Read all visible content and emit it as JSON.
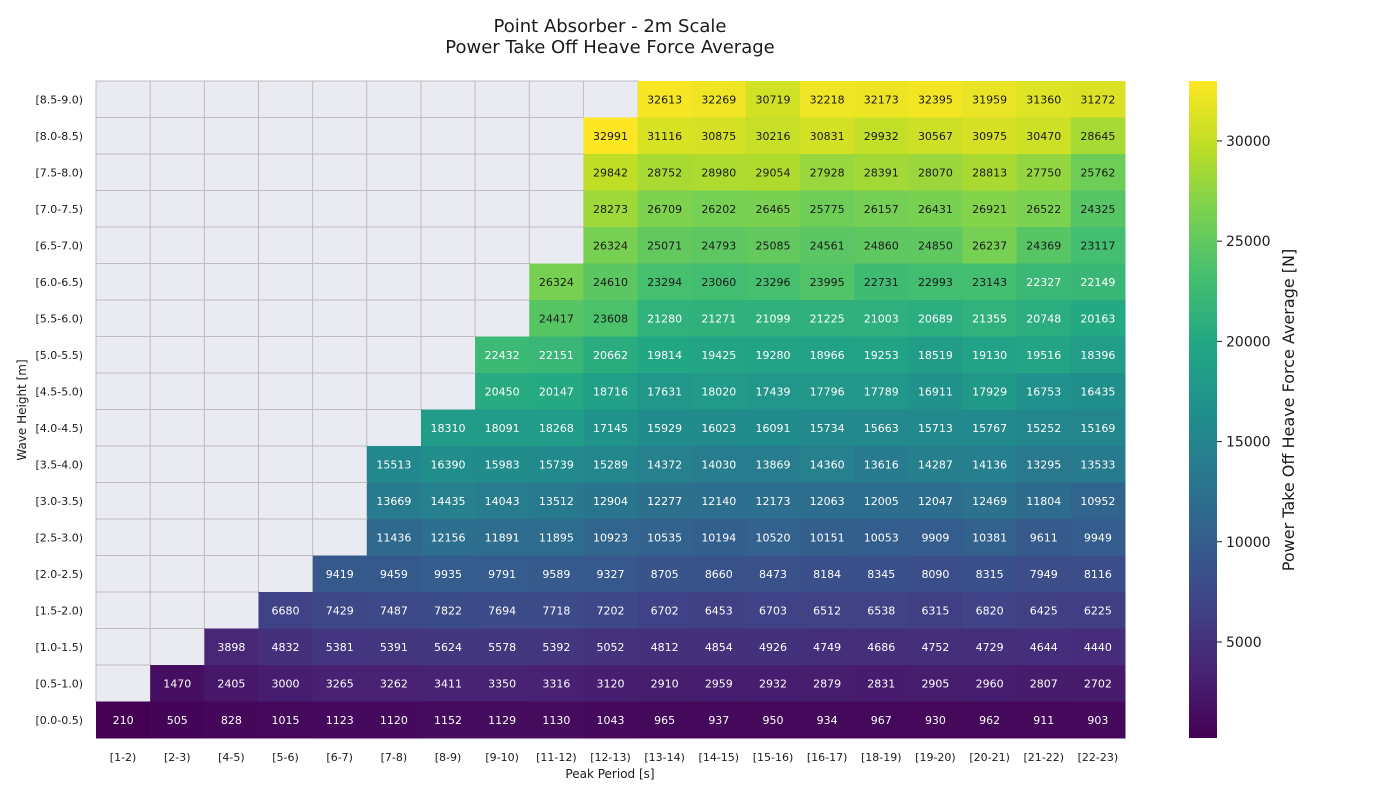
{
  "chart_data": {
    "type": "heatmap",
    "title": "Point Absorber - 2m Scale",
    "subtitle": "Power Take Off Heave Force Average",
    "xlabel": "Peak Period [s]",
    "ylabel": "Wave Height [m]",
    "colorbar_label": "Power Take Off Heave Force Average [N]",
    "colormap": "viridis",
    "colorbar_range": [
      210,
      32991
    ],
    "colorbar_ticks": [
      5000,
      10000,
      15000,
      20000,
      25000,
      30000
    ],
    "empty_cell_color": "#eaeaf2",
    "grid_color": "#bdbdbd",
    "x_categories": [
      "[1-2)",
      "[2-3)",
      "[4-5)",
      "[5-6)",
      "[6-7)",
      "[7-8)",
      "[8-9)",
      "[9-10)",
      "[11-12)",
      "[12-13)",
      "[13-14)",
      "[14-15)",
      "[15-16)",
      "[16-17)",
      "[18-19)",
      "[19-20)",
      "[20-21)",
      "[21-22)",
      "[22-23)"
    ],
    "y_categories": [
      "[8.5-9.0)",
      "[8.0-8.5)",
      "[7.5-8.0)",
      "[7.0-7.5)",
      "[6.5-7.0)",
      "[6.0-6.5)",
      "[5.5-6.0)",
      "[5.0-5.5)",
      "[4.5-5.0)",
      "[4.0-4.5)",
      "[3.5-4.0)",
      "[3.0-3.5)",
      "[2.5-3.0)",
      "[2.0-2.5)",
      "[1.5-2.0)",
      "[1.0-1.5)",
      "[0.5-1.0)",
      "[0.0-0.5)"
    ],
    "values": [
      [
        null,
        null,
        null,
        null,
        null,
        null,
        null,
        null,
        null,
        null,
        32613,
        32269,
        30719,
        32218,
        32173,
        32395,
        31959,
        31360,
        31272
      ],
      [
        null,
        null,
        null,
        null,
        null,
        null,
        null,
        null,
        null,
        32991,
        31116,
        30875,
        30216,
        30831,
        29932,
        30567,
        30975,
        30470,
        28645
      ],
      [
        null,
        null,
        null,
        null,
        null,
        null,
        null,
        null,
        null,
        29842,
        28752,
        28980,
        29054,
        27928,
        28391,
        28070,
        28813,
        27750,
        25762
      ],
      [
        null,
        null,
        null,
        null,
        null,
        null,
        null,
        null,
        null,
        28273,
        26709,
        26202,
        26465,
        25775,
        26157,
        26431,
        26921,
        26522,
        24325
      ],
      [
        null,
        null,
        null,
        null,
        null,
        null,
        null,
        null,
        null,
        26324,
        25071,
        24793,
        25085,
        24561,
        24860,
        24850,
        26237,
        24369,
        23117
      ],
      [
        null,
        null,
        null,
        null,
        null,
        null,
        null,
        null,
        26324,
        24610,
        23294,
        23060,
        23296,
        23995,
        22731,
        22993,
        23143,
        22327,
        22149
      ],
      [
        null,
        null,
        null,
        null,
        null,
        null,
        null,
        null,
        24417,
        23608,
        21280,
        21271,
        21099,
        21225,
        21003,
        20689,
        21355,
        20748,
        20163
      ],
      [
        null,
        null,
        null,
        null,
        null,
        null,
        null,
        22432,
        22151,
        20662,
        19814,
        19425,
        19280,
        18966,
        19253,
        18519,
        19130,
        19516,
        18396
      ],
      [
        null,
        null,
        null,
        null,
        null,
        null,
        null,
        20450,
        20147,
        18716,
        17631,
        18020,
        17439,
        17796,
        17789,
        16911,
        17929,
        16753,
        16435
      ],
      [
        null,
        null,
        null,
        null,
        null,
        null,
        18310,
        18091,
        18268,
        17145,
        15929,
        16023,
        16091,
        15734,
        15663,
        15713,
        15767,
        15252,
        15169
      ],
      [
        null,
        null,
        null,
        null,
        null,
        15513,
        16390,
        15983,
        15739,
        15289,
        14372,
        14030,
        13869,
        14360,
        13616,
        14287,
        14136,
        13295,
        13533
      ],
      [
        null,
        null,
        null,
        null,
        null,
        13669,
        14435,
        14043,
        13512,
        12904,
        12277,
        12140,
        12173,
        12063,
        12005,
        12047,
        12469,
        11804,
        10952
      ],
      [
        null,
        null,
        null,
        null,
        null,
        11436,
        12156,
        11891,
        11895,
        10923,
        10535,
        10194,
        10520,
        10151,
        10053,
        9909,
        10381,
        9611,
        9949
      ],
      [
        null,
        null,
        null,
        null,
        9419,
        9459,
        9935,
        9791,
        9589,
        9327,
        8705,
        8660,
        8473,
        8184,
        8345,
        8090,
        8315,
        7949,
        8116
      ],
      [
        null,
        null,
        null,
        6680,
        7429,
        7487,
        7822,
        7694,
        7718,
        7202,
        6702,
        6453,
        6703,
        6512,
        6538,
        6315,
        6820,
        6425,
        6225
      ],
      [
        null,
        null,
        3898,
        4832,
        5381,
        5391,
        5624,
        5578,
        5392,
        5052,
        4812,
        4854,
        4926,
        4749,
        4686,
        4752,
        4729,
        4644,
        4440
      ],
      [
        null,
        1470,
        2405,
        3000,
        3265,
        3262,
        3411,
        3350,
        3316,
        3120,
        2910,
        2959,
        2932,
        2879,
        2831,
        2905,
        2960,
        2807,
        2702
      ],
      [
        210,
        505,
        828,
        1015,
        1123,
        1120,
        1152,
        1129,
        1130,
        1043,
        965,
        937,
        950,
        934,
        967,
        930,
        962,
        911,
        903
      ]
    ]
  }
}
